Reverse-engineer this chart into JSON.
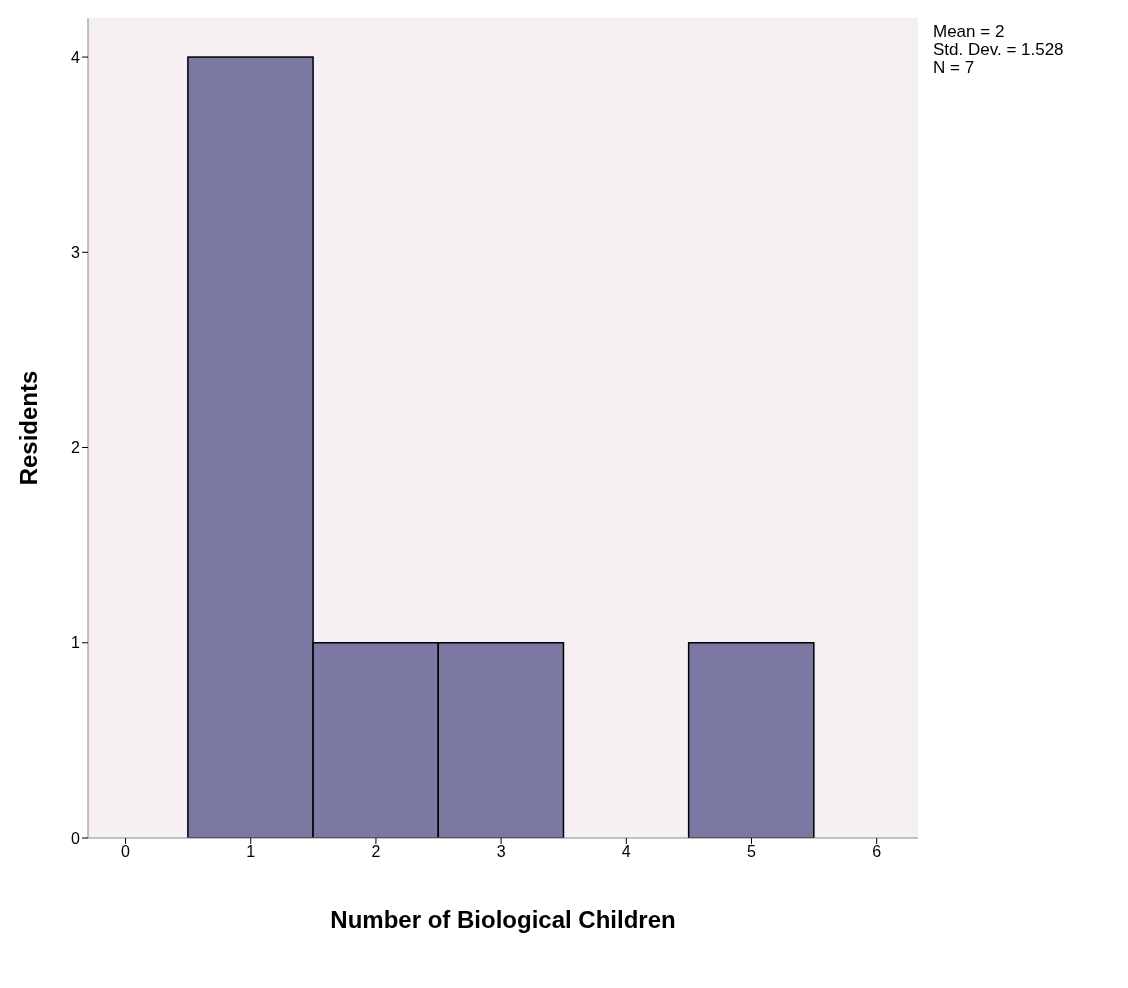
{
  "chart_data": {
    "type": "histogram",
    "xlabel": "Number of Biological Children",
    "ylabel": "Residents",
    "bins": [
      0.5,
      1.5,
      2.5,
      3.5,
      4.5,
      5.5
    ],
    "values": [
      4,
      1,
      1,
      0,
      1
    ],
    "color": "#7b79a3",
    "xlim": [
      -0.3,
      6.33
    ],
    "xticks": [
      0,
      1,
      2,
      3,
      4,
      5,
      6
    ],
    "ylim": [
      0,
      4.2
    ],
    "yticks": [
      0,
      1,
      2,
      3,
      4
    ],
    "grid": false,
    "annotations": [
      "Mean = 2",
      "Std. Dev. = 1.528",
      "N = 7"
    ]
  }
}
